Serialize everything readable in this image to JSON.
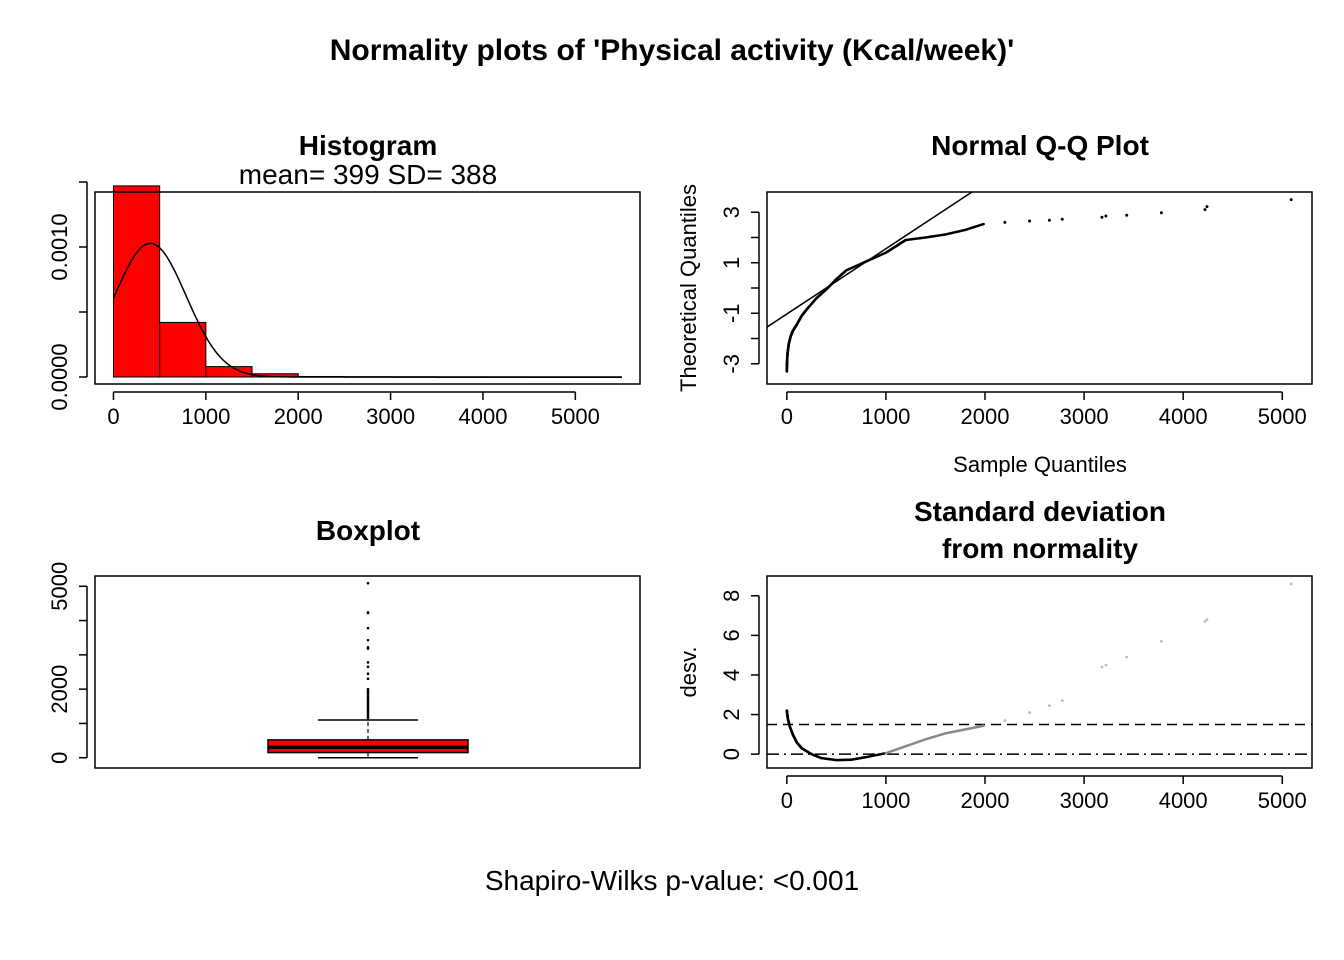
{
  "page": {
    "title": "Normality plots of 'Physical activity (Kcal/week)'",
    "footer": "Shapiro-Wilks p-value: <0.001"
  },
  "chart_data": [
    {
      "type": "histogram",
      "title": "Histogram",
      "subtitle": "mean= 399  SD= 388",
      "xlim": [
        0,
        5500
      ],
      "ylim": [
        0,
        0.0015
      ],
      "xticks": [
        0,
        1000,
        2000,
        3000,
        4000,
        5000
      ],
      "xtick_labels": [
        "0",
        "1000",
        "2000",
        "3000",
        "4000",
        "5000"
      ],
      "yticks": [
        0,
        0.0005,
        0.001,
        0.0015
      ],
      "ylabeled": [
        {
          "value": 0,
          "label": "0.0000"
        },
        {
          "value": 0.001,
          "label": "0.0010"
        }
      ],
      "bins": [
        {
          "start": 0,
          "end": 500,
          "density": 0.00147
        },
        {
          "start": 500,
          "end": 1000,
          "density": 0.00042
        },
        {
          "start": 1000,
          "end": 1500,
          "density": 8e-05
        },
        {
          "start": 1500,
          "end": 2000,
          "density": 2.5e-05
        },
        {
          "start": 2000,
          "end": 2500,
          "density": 4e-06
        },
        {
          "start": 2500,
          "end": 3000,
          "density": 2e-06
        },
        {
          "start": 3000,
          "end": 3500,
          "density": 1.5e-06
        },
        {
          "start": 3500,
          "end": 4000,
          "density": 5e-07
        },
        {
          "start": 4000,
          "end": 4500,
          "density": 8e-07
        },
        {
          "start": 4500,
          "end": 5000,
          "density": 3e-07
        },
        {
          "start": 5000,
          "end": 5500,
          "density": 3e-07
        }
      ],
      "normal_curve": {
        "mean": 399,
        "sd": 388
      },
      "bar_color": "#ff0000"
    },
    {
      "type": "scatter",
      "title": "Normal Q-Q Plot",
      "xlabel": "Sample Quantiles",
      "ylabel": "Theoretical Quantiles",
      "xlim": [
        -200,
        5300
      ],
      "ylim": [
        -3.8,
        3.8
      ],
      "xticks": [
        0,
        1000,
        2000,
        3000,
        4000,
        5000
      ],
      "xtick_labels": [
        "0",
        "1000",
        "2000",
        "3000",
        "4000",
        "5000"
      ],
      "yticks": [
        -3,
        -2,
        -1,
        0,
        1,
        2,
        3
      ],
      "ylabeled": [
        {
          "value": -3,
          "label": "-3"
        },
        {
          "value": -1,
          "label": "-1"
        },
        {
          "value": 1,
          "label": "1"
        },
        {
          "value": 3,
          "label": "3"
        }
      ],
      "reference_line": {
        "intercept": -1.03,
        "slope": 0.002585
      },
      "curve_points": [
        [
          0,
          -3.3
        ],
        [
          2,
          -3.0
        ],
        [
          5,
          -2.7
        ],
        [
          10,
          -2.5
        ],
        [
          20,
          -2.2
        ],
        [
          40,
          -1.9
        ],
        [
          60,
          -1.7
        ],
        [
          100,
          -1.45
        ],
        [
          150,
          -1.1
        ],
        [
          200,
          -0.85
        ],
        [
          300,
          -0.4
        ],
        [
          400,
          -0.05
        ],
        [
          500,
          0.35
        ],
        [
          600,
          0.7
        ],
        [
          800,
          1.05
        ],
        [
          1000,
          1.4
        ],
        [
          1100,
          1.65
        ],
        [
          1200,
          1.9
        ],
        [
          1400,
          2.0
        ],
        [
          1600,
          2.12
        ],
        [
          1800,
          2.3
        ],
        [
          2000,
          2.55
        ]
      ],
      "outlier_points": [
        [
          2200,
          2.6
        ],
        [
          2450,
          2.65
        ],
        [
          2650,
          2.68
        ],
        [
          2780,
          2.72
        ],
        [
          3180,
          2.8
        ],
        [
          3220,
          2.85
        ],
        [
          3430,
          2.88
        ],
        [
          3780,
          2.98
        ],
        [
          4220,
          3.1
        ],
        [
          4240,
          3.22
        ],
        [
          5090,
          3.5
        ]
      ]
    },
    {
      "type": "boxplot",
      "title": "Boxplot",
      "ylim": [
        -300,
        5300
      ],
      "yticks": [
        0,
        1000,
        2000,
        3000,
        4000,
        5000
      ],
      "ylabeled": [
        {
          "value": 0,
          "label": "0"
        },
        {
          "value": 2000,
          "label": "2000"
        },
        {
          "value": 5000,
          "label": "5000"
        }
      ],
      "q1": 150,
      "median": 300,
      "q3": 520,
      "whisker_low": 0,
      "whisker_high": 1100,
      "outliers": [
        1150,
        1200,
        1250,
        1300,
        1350,
        1400,
        1450,
        1500,
        1550,
        1600,
        1650,
        1700,
        1750,
        1800,
        1850,
        1900,
        1950,
        2000,
        2300,
        2450,
        2650,
        2780,
        3180,
        3220,
        3430,
        3780,
        4220,
        4240,
        5090
      ],
      "box_color": "#ff0000"
    },
    {
      "type": "scatter",
      "title": "Standard deviation\nfrom normality",
      "title_lines": [
        "Standard deviation",
        "from normality"
      ],
      "ylabel": "desv.",
      "xlim": [
        -200,
        5300
      ],
      "ylim": [
        -0.7,
        9.0
      ],
      "xticks": [
        0,
        1000,
        2000,
        3000,
        4000,
        5000
      ],
      "xtick_labels": [
        "0",
        "1000",
        "2000",
        "3000",
        "4000",
        "5000"
      ],
      "yticks": [
        0,
        2,
        4,
        6,
        8
      ],
      "ylabeled": [
        {
          "value": 0,
          "label": "0"
        },
        {
          "value": 2,
          "label": "2"
        },
        {
          "value": 4,
          "label": "4"
        },
        {
          "value": 6,
          "label": "6"
        },
        {
          "value": 8,
          "label": "8"
        }
      ],
      "hlines": [
        {
          "y": 1.5,
          "style": "dashed"
        },
        {
          "y": 0,
          "style": "dotdash"
        }
      ],
      "curve_points": [
        [
          0,
          2.2
        ],
        [
          10,
          1.8
        ],
        [
          30,
          1.4
        ],
        [
          60,
          1.0
        ],
        [
          100,
          0.6
        ],
        [
          150,
          0.3
        ],
        [
          250,
          0.0
        ],
        [
          350,
          -0.2
        ],
        [
          500,
          -0.3
        ],
        [
          650,
          -0.28
        ],
        [
          800,
          -0.15
        ],
        [
          1000,
          0.05
        ],
        [
          1200,
          0.4
        ],
        [
          1400,
          0.75
        ],
        [
          1600,
          1.05
        ],
        [
          1800,
          1.25
        ],
        [
          2000,
          1.45
        ]
      ],
      "outlier_points": [
        [
          2200,
          1.7
        ],
        [
          2450,
          2.1
        ],
        [
          2650,
          2.45
        ],
        [
          2780,
          2.7
        ],
        [
          3180,
          4.4
        ],
        [
          3220,
          4.5
        ],
        [
          3430,
          4.9
        ],
        [
          3780,
          5.7
        ],
        [
          4220,
          6.7
        ],
        [
          4240,
          6.8
        ],
        [
          5090,
          8.6
        ]
      ]
    }
  ]
}
